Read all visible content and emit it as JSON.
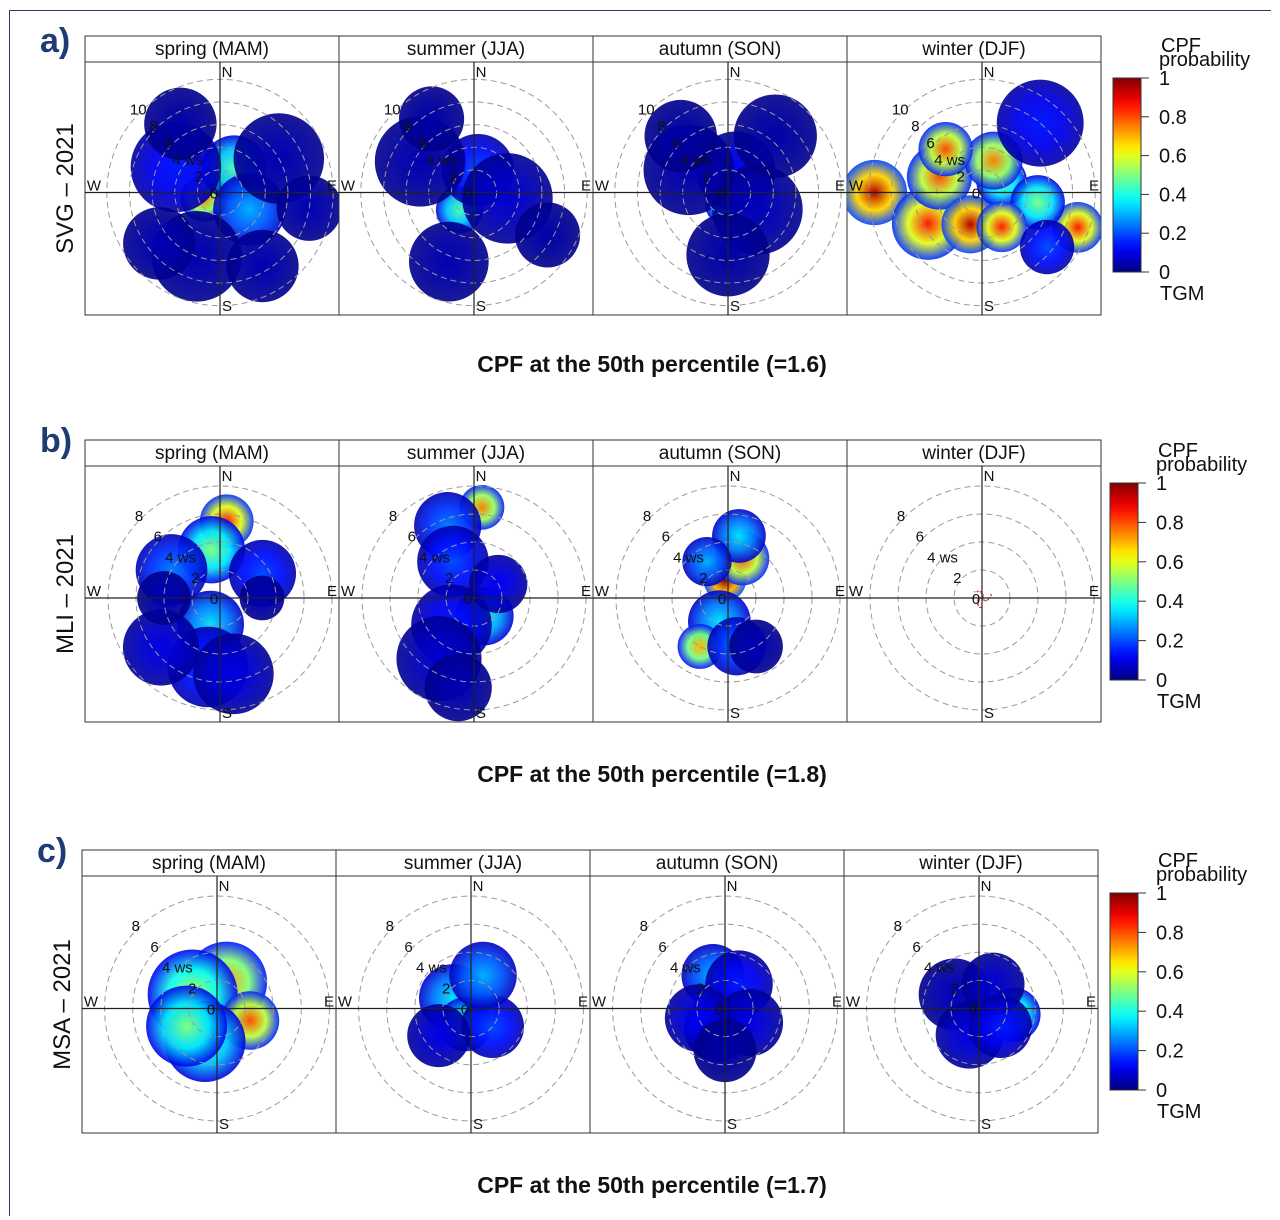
{
  "chart_data": [
    {
      "type": "heatmap",
      "panel": "a)",
      "ylabel": "SVG – 2021",
      "caption": "CPF at the 50th percentile (=1.6)",
      "facets": [
        "spring (MAM)",
        "summer (JJA)",
        "autumn (SON)",
        "winter (DJF)"
      ],
      "ring_labels": [
        "10",
        "8",
        "6",
        "4 ws",
        "2",
        "0"
      ],
      "directions": [
        "N",
        "E",
        "S",
        "W"
      ],
      "rings": [
        2,
        4,
        6,
        8,
        10
      ],
      "max_ws": 11,
      "colorbar": {
        "title": "CPF probability",
        "subtitle": "TGM",
        "ticks": [
          "0",
          "0.2",
          "0.4",
          "0.6",
          "0.8",
          "1"
        ],
        "range": [
          0,
          1
        ]
      },
      "blobs": [
        [
          {
            "a": 0,
            "r": 0.0,
            "v": 0.85,
            "s": 1.2
          },
          {
            "a": 250,
            "r": 1.5,
            "v": 0.75,
            "s": 1.3
          },
          {
            "a": 30,
            "r": 2.5,
            "v": 0.45,
            "s": 1.8
          },
          {
            "a": 120,
            "r": 3.0,
            "v": 0.3,
            "s": 2.0
          },
          {
            "a": 300,
            "r": 4.5,
            "v": 0.15,
            "s": 2.5
          },
          {
            "a": 60,
            "r": 6,
            "v": 0.05,
            "s": 2.5
          },
          {
            "a": 200,
            "r": 6,
            "v": 0.05,
            "s": 2.5
          },
          {
            "a": 330,
            "r": 7,
            "v": 0.04,
            "s": 2.0
          },
          {
            "a": 100,
            "r": 8,
            "v": 0.05,
            "s": 1.8
          },
          {
            "a": 150,
            "r": 7.5,
            "v": 0.05,
            "s": 2.0
          },
          {
            "a": 230,
            "r": 7,
            "v": 0.05,
            "s": 2.0
          }
        ],
        [
          {
            "a": 220,
            "r": 2.0,
            "v": 0.45,
            "s": 1.3
          },
          {
            "a": 10,
            "r": 2.0,
            "v": 0.2,
            "s": 2.0
          },
          {
            "a": 100,
            "r": 3.0,
            "v": 0.08,
            "s": 2.5
          },
          {
            "a": 300,
            "r": 5.5,
            "v": 0.05,
            "s": 2.5
          },
          {
            "a": 200,
            "r": 6.5,
            "v": 0.05,
            "s": 2.2
          },
          {
            "a": 120,
            "r": 7.5,
            "v": 0.04,
            "s": 1.8
          },
          {
            "a": 330,
            "r": 7.5,
            "v": 0.04,
            "s": 1.8
          }
        ],
        [
          {
            "a": 200,
            "r": 1.2,
            "v": 0.4,
            "s": 1.0
          },
          {
            "a": 20,
            "r": 2.0,
            "v": 0.12,
            "s": 2.2
          },
          {
            "a": 120,
            "r": 3.0,
            "v": 0.06,
            "s": 2.5
          },
          {
            "a": 300,
            "r": 4.0,
            "v": 0.05,
            "s": 2.5
          },
          {
            "a": 40,
            "r": 6.5,
            "v": 0.04,
            "s": 2.3
          },
          {
            "a": 320,
            "r": 6.5,
            "v": 0.04,
            "s": 2.0
          },
          {
            "a": 180,
            "r": 5.5,
            "v": 0.04,
            "s": 2.3
          }
        ],
        [
          {
            "a": 270,
            "r": 9.5,
            "v": 0.95,
            "s": 1.8
          },
          {
            "a": 240,
            "r": 5.5,
            "v": 0.85,
            "s": 2.0
          },
          {
            "a": 290,
            "r": 4.0,
            "v": 0.8,
            "s": 1.8
          },
          {
            "a": 200,
            "r": 3.0,
            "v": 0.95,
            "s": 1.6
          },
          {
            "a": 60,
            "r": 2.0,
            "v": 0.5,
            "s": 1.4
          },
          {
            "a": 20,
            "r": 3.0,
            "v": 0.75,
            "s": 1.6
          },
          {
            "a": 110,
            "r": 9.0,
            "v": 0.85,
            "s": 1.4
          },
          {
            "a": 40,
            "r": 8.0,
            "v": 0.15,
            "s": 2.4
          },
          {
            "a": 100,
            "r": 5.0,
            "v": 0.5,
            "s": 1.5
          },
          {
            "a": 150,
            "r": 3.5,
            "v": 0.85,
            "s": 1.4
          },
          {
            "a": 130,
            "r": 7.5,
            "v": 0.2,
            "s": 1.5
          },
          {
            "a": 320,
            "r": 5.0,
            "v": 0.8,
            "s": 1.5
          }
        ]
      ]
    },
    {
      "type": "heatmap",
      "panel": "b)",
      "ylabel": "MLI – 2021",
      "caption": "CPF at the 50th percentile (=1.8)",
      "facets": [
        "spring (MAM)",
        "summer (JJA)",
        "autumn (SON)",
        "winter (DJF)"
      ],
      "ring_labels": [
        "8",
        "6",
        "4 ws",
        "2",
        "0"
      ],
      "directions": [
        "N",
        "E",
        "S",
        "W"
      ],
      "rings": [
        2,
        4,
        6,
        8
      ],
      "max_ws": 9,
      "colorbar": {
        "title": "CPF probability",
        "subtitle": "TGM",
        "ticks": [
          "0",
          "0.2",
          "0.4",
          "0.6",
          "0.8",
          "1"
        ],
        "range": [
          0,
          1
        ]
      },
      "blobs": [
        [
          {
            "a": 5,
            "r": 5.5,
            "v": 0.85,
            "s": 1.2
          },
          {
            "a": 350,
            "r": 3.5,
            "v": 0.5,
            "s": 1.5
          },
          {
            "a": 300,
            "r": 4.0,
            "v": 0.25,
            "s": 1.6
          },
          {
            "a": 60,
            "r": 3.5,
            "v": 0.2,
            "s": 1.5
          },
          {
            "a": 200,
            "r": 2.0,
            "v": 0.35,
            "s": 1.5
          },
          {
            "a": 190,
            "r": 5.0,
            "v": 0.2,
            "s": 1.8
          },
          {
            "a": 170,
            "r": 5.5,
            "v": 0.1,
            "s": 1.8
          },
          {
            "a": 230,
            "r": 5.5,
            "v": 0.1,
            "s": 1.7
          },
          {
            "a": 90,
            "r": 3.0,
            "v": 0.05,
            "s": 1.0
          },
          {
            "a": 270,
            "r": 4.0,
            "v": 0.05,
            "s": 1.2
          }
        ],
        [
          {
            "a": 5,
            "r": 6.5,
            "v": 0.75,
            "s": 1.0
          },
          {
            "a": 340,
            "r": 5.5,
            "v": 0.25,
            "s": 1.5
          },
          {
            "a": 330,
            "r": 3.0,
            "v": 0.2,
            "s": 1.6
          },
          {
            "a": 150,
            "r": 1.5,
            "v": 0.4,
            "s": 1.3
          },
          {
            "a": 220,
            "r": 2.5,
            "v": 0.15,
            "s": 1.8
          },
          {
            "a": 210,
            "r": 5.0,
            "v": 0.08,
            "s": 1.9
          },
          {
            "a": 190,
            "r": 6.5,
            "v": 0.05,
            "s": 1.5
          },
          {
            "a": 60,
            "r": 2.0,
            "v": 0.12,
            "s": 1.3
          }
        ],
        [
          {
            "a": 350,
            "r": 1.3,
            "v": 1.0,
            "s": 0.95
          },
          {
            "a": 20,
            "r": 3.0,
            "v": 0.8,
            "s": 1.2
          },
          {
            "a": 10,
            "r": 4.5,
            "v": 0.35,
            "s": 1.2
          },
          {
            "a": 200,
            "r": 1.8,
            "v": 0.35,
            "s": 1.4
          },
          {
            "a": 210,
            "r": 4.0,
            "v": 0.7,
            "s": 1.0
          },
          {
            "a": 170,
            "r": 3.5,
            "v": 0.25,
            "s": 1.3
          },
          {
            "a": 150,
            "r": 4.0,
            "v": 0.05,
            "s": 1.2
          },
          {
            "a": 330,
            "r": 3.0,
            "v": 0.3,
            "s": 1.1
          }
        ],
        []
      ]
    },
    {
      "type": "heatmap",
      "panel": "c)",
      "ylabel": "MSA – 2021",
      "caption": "CPF at the 50th percentile (=1.7)",
      "facets": [
        "spring (MAM)",
        "summer (JJA)",
        "autumn (SON)",
        "winter (DJF)"
      ],
      "ring_labels": [
        "8",
        "6",
        "4 ws",
        "2",
        "0"
      ],
      "directions": [
        "N",
        "E",
        "S",
        "W"
      ],
      "rings": [
        2,
        4,
        6,
        8
      ],
      "max_ws": 9,
      "colorbar": {
        "title": "CPF probability",
        "subtitle": "TGM",
        "ticks": [
          "0",
          "0.2",
          "0.4",
          "0.6",
          "0.8",
          "1"
        ],
        "range": [
          0,
          1
        ]
      },
      "blobs": [
        [
          {
            "a": 20,
            "r": 2.0,
            "v": 0.72,
            "s": 1.8
          },
          {
            "a": 300,
            "r": 2.0,
            "v": 0.55,
            "s": 2.0
          },
          {
            "a": 110,
            "r": 2.5,
            "v": 0.8,
            "s": 1.3
          },
          {
            "a": 200,
            "r": 2.5,
            "v": 0.45,
            "s": 1.8
          },
          {
            "a": 240,
            "r": 2.5,
            "v": 0.5,
            "s": 1.8
          }
        ],
        [
          {
            "a": 60,
            "r": 0.5,
            "v": 0.75,
            "s": 1.0
          },
          {
            "a": 300,
            "r": 1.5,
            "v": 0.35,
            "s": 1.5
          },
          {
            "a": 200,
            "r": 1.2,
            "v": 0.45,
            "s": 1.2
          },
          {
            "a": 130,
            "r": 2.0,
            "v": 0.2,
            "s": 1.4
          },
          {
            "a": 20,
            "r": 2.5,
            "v": 0.3,
            "s": 1.5
          },
          {
            "a": 230,
            "r": 3.0,
            "v": 0.1,
            "s": 1.4
          }
        ],
        [
          {
            "a": 200,
            "r": 1.5,
            "v": 0.08,
            "s": 1.5
          },
          {
            "a": 340,
            "r": 2.5,
            "v": 0.3,
            "s": 1.4
          },
          {
            "a": 30,
            "r": 2.0,
            "v": 0.15,
            "s": 1.5
          },
          {
            "a": 120,
            "r": 2.0,
            "v": 0.1,
            "s": 1.5
          },
          {
            "a": 250,
            "r": 2.0,
            "v": 0.12,
            "s": 1.5
          },
          {
            "a": 180,
            "r": 3.0,
            "v": 0.04,
            "s": 1.4
          }
        ],
        [
          {
            "a": 100,
            "r": 2.5,
            "v": 0.5,
            "s": 1.2
          },
          {
            "a": 300,
            "r": 2.0,
            "v": 0.06,
            "s": 1.6
          },
          {
            "a": 200,
            "r": 2.0,
            "v": 0.1,
            "s": 1.5
          },
          {
            "a": 30,
            "r": 2.0,
            "v": 0.08,
            "s": 1.4
          },
          {
            "a": 130,
            "r": 2.0,
            "v": 0.15,
            "s": 1.4
          }
        ]
      ]
    }
  ]
}
